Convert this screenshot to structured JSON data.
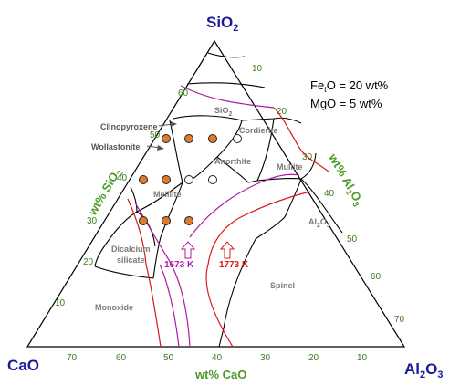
{
  "vertices": {
    "top": {
      "main": "SiO",
      "sub": "2",
      "post": ""
    },
    "left": {
      "main": "CaO",
      "sub": "",
      "post": ""
    },
    "right": {
      "main": "Al",
      "sub": "2",
      "post": "O",
      "sub2": "3"
    }
  },
  "axis_titles": {
    "left": {
      "main": "wt% SiO",
      "sub": "2"
    },
    "right": {
      "main": "wt% Al",
      "sub": "2",
      "post": "O",
      "sub2": "3"
    },
    "bottom": "wt% CaO"
  },
  "ticks": {
    "left": [
      "30",
      "40",
      "50",
      "60",
      "20",
      "10"
    ],
    "right": [
      "20",
      "30",
      "40",
      "50",
      "60",
      "70",
      "10"
    ],
    "bottom": [
      "70",
      "60",
      "50",
      "40",
      "30",
      "20",
      "10"
    ],
    "top_edge": [
      "10",
      "20",
      "30",
      "40",
      "50",
      "60",
      "70"
    ]
  },
  "conditions": [
    {
      "main": "Fe",
      "sub": "t",
      "post": "O = 20 wt%"
    },
    {
      "main": "MgO = 5 wt%",
      "sub": "",
      "post": ""
    }
  ],
  "regions": {
    "sio2": {
      "main": "SiO",
      "sub": "2"
    },
    "cordierite": "Cordierite",
    "anorthite": "Anorthite",
    "mullite": "Mullite",
    "melilite": "Melilite",
    "al2o3": {
      "main": "Al",
      "sub": "2",
      "post": "O",
      "sub2": "3"
    },
    "dicalcium_1": "Dicalcium",
    "dicalcium_2": "silicate",
    "spinel": "Spinel",
    "monoxide": "Monoxide"
  },
  "pointers": {
    "clinopyroxene": "Clinopyroxene",
    "wollastonite": "Wollastonite"
  },
  "isotherms": [
    {
      "label": "1673 K",
      "color": "#b01aa0"
    },
    {
      "label": "1773 K",
      "color": "#d81818"
    }
  ],
  "boundary_color": "#000000",
  "tick_color": "#3a7d1e",
  "marker_fill": "#e07a2c",
  "marker_open_fill": "#ffffff"
}
